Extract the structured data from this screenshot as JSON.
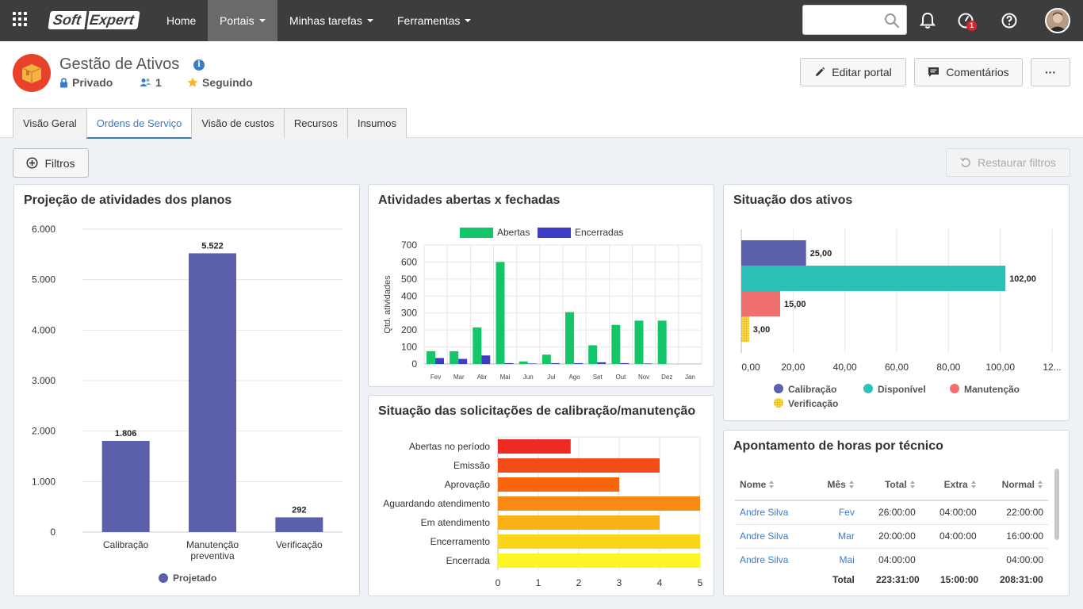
{
  "nav": {
    "logo_soft": "Soft",
    "logo_expert": "Expert",
    "items": [
      {
        "label": "Home"
      },
      {
        "label": "Portais"
      },
      {
        "label": "Minhas tarefas"
      },
      {
        "label": "Ferramentas"
      }
    ],
    "search_placeholder": "",
    "notification_count": "1"
  },
  "header": {
    "title": "Gestão de Ativos",
    "privacy": "Privado",
    "members": "1",
    "following": "Seguindo",
    "edit_button": "Editar portal",
    "comments_button": "Comentários",
    "more_button": "···"
  },
  "tabs": [
    {
      "label": "Visão Geral"
    },
    {
      "label": "Ordens de Serviço"
    },
    {
      "label": "Visão de custos"
    },
    {
      "label": "Recursos"
    },
    {
      "label": "Insumos"
    }
  ],
  "toolbar": {
    "filters": "Filtros",
    "reset": "Restaurar filtros"
  },
  "cards": {
    "projecao": "Projeção de atividades dos planos",
    "abertas": "Atividades abertas x fechadas",
    "situacao_ativos": "Situação dos ativos",
    "solicitacoes": "Situação das solicitações de calibração/manutenção",
    "apontamento": "Apontamento de horas por técnico"
  },
  "colors": {
    "projetado": "#5b5fac",
    "abertas": "#13c66a",
    "encerradas": "#3d3dc6",
    "calibracao": "#5b5fac",
    "disponivel": "#2bc1b9",
    "manutencao": "#ef6f6c",
    "verificacao": "#f5c518"
  },
  "chart_data": [
    {
      "type": "bar",
      "title": "Projeção de atividades dos planos",
      "categories": [
        "Calibração",
        "Manutenção preventiva",
        "Verificação"
      ],
      "category_lines": [
        [
          "Calibração"
        ],
        [
          "Manutenção",
          "preventiva"
        ],
        [
          "Verificação"
        ]
      ],
      "series": [
        {
          "name": "Projetado",
          "values": [
            1806,
            5522,
            292
          ]
        }
      ],
      "value_labels": [
        "1.806",
        "5.522",
        "292"
      ],
      "yticks": [
        "0",
        "1.000",
        "2.000",
        "3.000",
        "4.000",
        "5.000",
        "6.000"
      ],
      "ylim": [
        0,
        6000
      ],
      "legend": "bottom",
      "grid": true
    },
    {
      "type": "bar",
      "title": "Atividades abertas x fechadas",
      "categories": [
        "Fev",
        "Mar",
        "Abr",
        "Mai",
        "Jun",
        "Jul",
        "Ago",
        "Set",
        "Out",
        "Nov",
        "Dez",
        "Jan"
      ],
      "series": [
        {
          "name": "Abertas",
          "values": [
            75,
            75,
            215,
            600,
            15,
            55,
            305,
            110,
            230,
            255,
            255,
            0
          ]
        },
        {
          "name": "Encerradas",
          "values": [
            35,
            30,
            50,
            5,
            3,
            5,
            5,
            10,
            5,
            3,
            0,
            0
          ]
        }
      ],
      "ylabel": "Qtd. atividades",
      "yticks": [
        "0",
        "100",
        "200",
        "300",
        "400",
        "500",
        "600",
        "700"
      ],
      "ylim": [
        0,
        700
      ],
      "legend": "top",
      "grid": true
    },
    {
      "type": "bar",
      "orientation": "horizontal",
      "title": "Situação dos ativos",
      "series": [
        {
          "name": "Calibração",
          "values": [
            25
          ],
          "label": "25,00"
        },
        {
          "name": "Disponível",
          "values": [
            102
          ],
          "label": "102,00"
        },
        {
          "name": "Manutenção",
          "values": [
            15
          ],
          "label": "15,00"
        },
        {
          "name": "Verificação",
          "values": [
            3
          ],
          "label": "3,00"
        }
      ],
      "xticks": [
        "0,00",
        "20,00",
        "40,00",
        "60,00",
        "80,00",
        "100,00",
        "12..."
      ],
      "xlim": [
        0,
        120
      ],
      "legend": "bottom",
      "grid": true
    },
    {
      "type": "bar",
      "orientation": "horizontal",
      "title": "Situação das solicitações de calibração/manutenção",
      "categories": [
        "Abertas no período",
        "Emissão",
        "Aprovação",
        "Aguardando atendimento",
        "Em atendimento",
        "Encerramento",
        "Encerrada"
      ],
      "values": [
        1.8,
        4,
        3,
        5,
        4,
        5,
        5
      ],
      "bar_colors": [
        "#ee2a24",
        "#f34b18",
        "#f7650d",
        "#f88912",
        "#f9b116",
        "#fbd41c",
        "#fef524"
      ],
      "xticks": [
        "0",
        "1",
        "2",
        "3",
        "4",
        "5"
      ],
      "xlim": [
        0,
        5
      ],
      "grid": true
    }
  ],
  "table": {
    "headers": {
      "nome": "Nome",
      "mes": "Mês",
      "total": "Total",
      "extra": "Extra",
      "normal": "Normal"
    },
    "rows": [
      {
        "nome": "Andre Silva",
        "mes": "Fev",
        "total": "26:00:00",
        "extra": "04:00:00",
        "normal": "22:00:00"
      },
      {
        "nome": "Andre Silva",
        "mes": "Mar",
        "total": "20:00:00",
        "extra": "04:00:00",
        "normal": "16:00:00"
      },
      {
        "nome": "Andre Silva",
        "mes": "Mai",
        "total": "04:00:00",
        "extra": "",
        "normal": "04:00:00"
      }
    ],
    "footer": {
      "label": "Total",
      "total": "223:31:00",
      "extra": "15:00:00",
      "normal": "208:31:00"
    }
  }
}
